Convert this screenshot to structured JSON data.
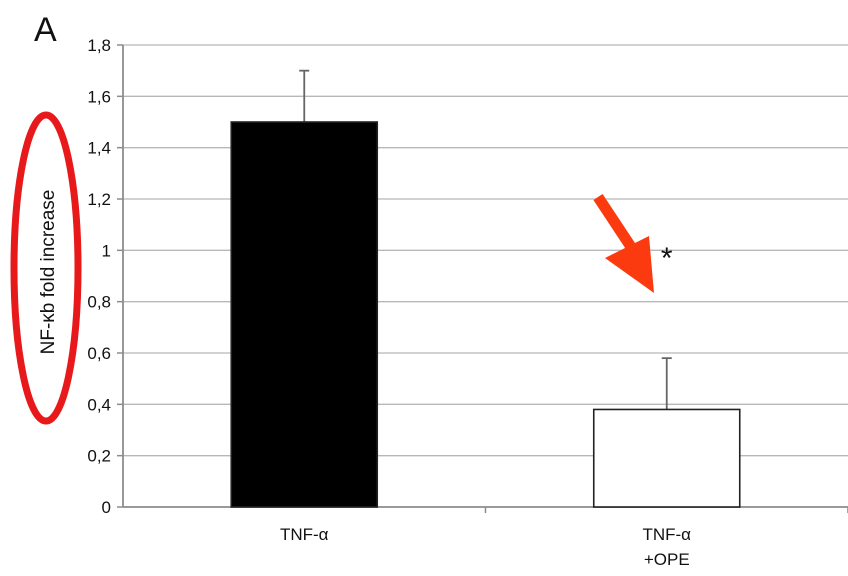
{
  "panel_label": "A",
  "colors": {
    "grid": "#b8b8b8",
    "axis": "#8c8c8c",
    "bar_fill": [
      "#000000",
      "#ffffff"
    ],
    "bar_stroke": "#222222",
    "error_bar": "#666666",
    "annotation": "#e8191b",
    "arrow": "#fb3a10"
  },
  "annotations": {
    "ylabel_circled": true,
    "arrow_icon": "arrow-down-left-icon"
  },
  "chart_data": {
    "type": "bar",
    "categories": [
      "TNF-α",
      "TNF-α\n+OPE"
    ],
    "values": [
      1.5,
      0.38
    ],
    "errors": [
      0.2,
      0.2
    ],
    "significance": [
      "",
      "*"
    ],
    "ylabel": "NF-κb fold increase",
    "xlabel": "",
    "ylim": [
      0,
      1.8
    ],
    "yticks": [
      0,
      0.2,
      0.4,
      0.6,
      0.8,
      1,
      1.2,
      1.4,
      1.6,
      1.8
    ],
    "ytick_labels": [
      "0",
      "0,2",
      "0,4",
      "0,6",
      "0,8",
      "1",
      "1,2",
      "1,4",
      "1,6",
      "1,8"
    ],
    "grid": true,
    "legend": "none"
  }
}
